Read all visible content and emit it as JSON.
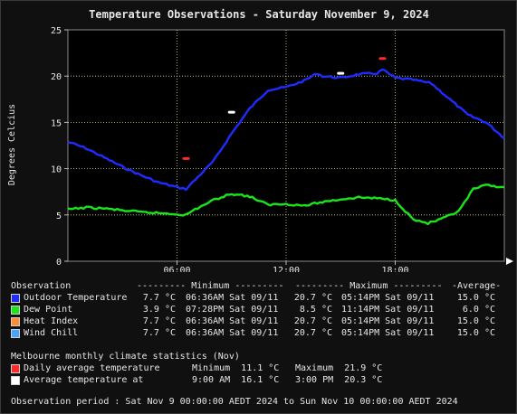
{
  "chart_data": {
    "type": "line",
    "title": "Temperature Observations - Saturday November 9, 2024",
    "ylabel": "Degrees Celcius",
    "xlabel": "",
    "ylim": [
      0,
      25
    ],
    "yticks": [
      0,
      5,
      10,
      15,
      20,
      25
    ],
    "xlim": [
      0,
      24
    ],
    "xticks": [
      {
        "x": 6,
        "label": "06:00"
      },
      {
        "x": 12,
        "label": "12:00"
      },
      {
        "x": 18,
        "label": "18:00"
      }
    ],
    "grid": true,
    "background": "#000000",
    "series": [
      {
        "name": "Outdoor Temperature",
        "color": "#1f2cff",
        "points": [
          [
            0,
            12.9
          ],
          [
            1,
            12.2
          ],
          [
            2,
            11.2
          ],
          [
            3,
            10.2
          ],
          [
            4,
            9.3
          ],
          [
            5,
            8.5
          ],
          [
            6,
            8.0
          ],
          [
            6.5,
            7.8
          ],
          [
            7,
            8.8
          ],
          [
            8,
            10.8
          ],
          [
            9,
            13.8
          ],
          [
            10,
            16.5
          ],
          [
            11,
            18.5
          ],
          [
            12,
            18.8
          ],
          [
            13,
            19.5
          ],
          [
            13.7,
            20.3
          ],
          [
            14,
            20.0
          ],
          [
            15,
            19.8
          ],
          [
            16,
            20.2
          ],
          [
            17,
            20.3
          ],
          [
            17.3,
            20.7
          ],
          [
            18,
            19.8
          ],
          [
            19,
            19.6
          ],
          [
            20,
            19.2
          ],
          [
            21,
            17.5
          ],
          [
            22,
            15.8
          ],
          [
            23,
            15.0
          ],
          [
            24,
            13.3
          ]
        ]
      },
      {
        "name": "Dew Point",
        "color": "#19e619",
        "points": [
          [
            0,
            5.6
          ],
          [
            1,
            5.8
          ],
          [
            2,
            5.7
          ],
          [
            3,
            5.5
          ],
          [
            4,
            5.3
          ],
          [
            5,
            5.2
          ],
          [
            6,
            5.1
          ],
          [
            6.5,
            5.0
          ],
          [
            7,
            5.6
          ],
          [
            8,
            6.6
          ],
          [
            9,
            7.3
          ],
          [
            10,
            7.0
          ],
          [
            11,
            6.1
          ],
          [
            12,
            6.2
          ],
          [
            13,
            6.0
          ],
          [
            14,
            6.4
          ],
          [
            15,
            6.7
          ],
          [
            16,
            6.9
          ],
          [
            17,
            6.8
          ],
          [
            18,
            6.6
          ],
          [
            19,
            4.5
          ],
          [
            19.8,
            4.1
          ],
          [
            20.5,
            4.5
          ],
          [
            21.5,
            5.4
          ],
          [
            22.3,
            7.8
          ],
          [
            23,
            8.2
          ],
          [
            24,
            8.0
          ]
        ]
      }
    ],
    "markers": [
      {
        "name": "Daily average minimum",
        "x": 6.5,
        "y": 11.1,
        "color": "#ff2a2a"
      },
      {
        "name": "Daily average maximum",
        "x": 17.3,
        "y": 21.9,
        "color": "#ff2a2a"
      },
      {
        "name": "Average temperature at 9:00 AM",
        "x": 9,
        "y": 16.1,
        "color": "#ffffff"
      },
      {
        "name": "Average temperature at 3:00 PM",
        "x": 15,
        "y": 20.3,
        "color": "#ffffff"
      }
    ]
  },
  "table": {
    "header": {
      "observation": "Observation",
      "minimum": "--------- Minimum ---------",
      "maximum": "--------- Maximum ---------",
      "average": "-Average-"
    },
    "rows": [
      {
        "label": "Outdoor Temperature",
        "color": "#1f2cff",
        "min_val": "7.7 °C",
        "min_time": "06:36AM Sat 09/11",
        "max_val": "20.7 °C",
        "max_time": "05:14PM Sat 09/11",
        "avg": "15.0 °C"
      },
      {
        "label": "Dew Point",
        "color": "#19e619",
        "min_val": "3.9 °C",
        "min_time": "07:28PM Sat 09/11",
        "max_val": "8.5 °C",
        "max_time": "11:14PM Sat 09/11",
        "avg": "6.0 °C"
      },
      {
        "label": "Heat Index",
        "color": "#ff8c33",
        "min_val": "7.7 °C",
        "min_time": "06:36AM Sat 09/11",
        "max_val": "20.7 °C",
        "max_time": "05:14PM Sat 09/11",
        "avg": "15.0 °C"
      },
      {
        "label": "Wind Chill",
        "color": "#4aa3ff",
        "min_val": "7.7 °C",
        "min_time": "06:36AM Sat 09/11",
        "max_val": "20.7 °C",
        "max_time": "05:14PM Sat 09/11",
        "avg": "15.0 °C"
      }
    ]
  },
  "climate": {
    "title": "Melbourne monthly climate statistics (Nov)",
    "rows": [
      {
        "label": "Daily average temperature",
        "color": "#ff2a2a",
        "c1": "Minimum  11.1 °C",
        "c2": "Maximum  21.9 °C"
      },
      {
        "label": "Average temperature at",
        "color": "#ffffff",
        "c1": "9:00 AM  16.1 °C",
        "c2": "3:00 PM  20.3 °C"
      }
    ]
  },
  "period": "Observation period : Sat Nov 9 00:00:00 AEDT 2024 to Sun Nov 10 00:00:00 AEDT 2024"
}
